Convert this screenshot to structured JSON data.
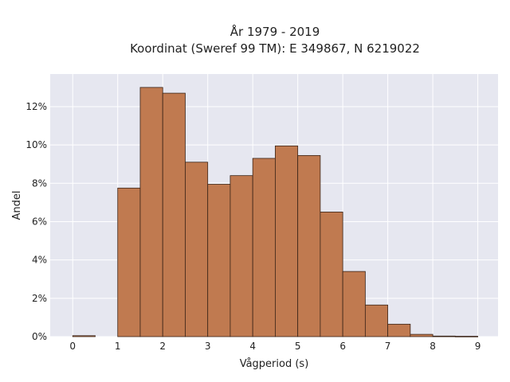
{
  "chart_data": {
    "type": "bar",
    "title": "År 1979 - 2019",
    "subtitle": "Koordinat (Sweref 99 TM): E 349867, N 6219022",
    "xlabel": "Vågperiod (s)",
    "ylabel": "Andel",
    "xlim": [
      -0.5,
      9.45
    ],
    "ylim": [
      0,
      13.7
    ],
    "x_ticks": [
      "0",
      "1",
      "2",
      "3",
      "4",
      "5",
      "6",
      "7",
      "8",
      "9"
    ],
    "y_ticks": [
      "0%",
      "2%",
      "4%",
      "6%",
      "8%",
      "10%",
      "12%"
    ],
    "bin_width": 0.5,
    "bin_starts": [
      0,
      0.5,
      1,
      1.5,
      2,
      2.5,
      3,
      3.5,
      4,
      4.5,
      5,
      5.5,
      6,
      6.5,
      7,
      7.5,
      8,
      8.5
    ],
    "values": [
      0.05,
      0,
      7.75,
      13.0,
      12.7,
      9.1,
      7.95,
      8.4,
      9.3,
      9.95,
      9.45,
      6.5,
      3.4,
      1.65,
      0.65,
      0.12,
      0.03,
      0.02
    ],
    "grid": true,
    "legend": "none"
  }
}
